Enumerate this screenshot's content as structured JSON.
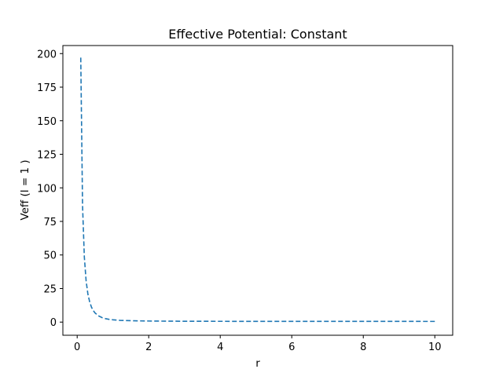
{
  "chart_data": {
    "type": "line",
    "title": "Effective Potential: Constant",
    "xlabel": "r",
    "ylabel": "Veff (l = 1 )",
    "xlim": [
      -0.4,
      10.5
    ],
    "ylim": [
      -9.8,
      206.0
    ],
    "xticks": [
      0,
      2,
      4,
      6,
      8,
      10
    ],
    "yticks": [
      0,
      25,
      50,
      75,
      100,
      125,
      150,
      175,
      200
    ],
    "grid": false,
    "legend": "none",
    "series": [
      {
        "line_style": "dashed",
        "color": "#1f77b4",
        "x": [
          0.1,
          0.15,
          0.2,
          0.25,
          0.3,
          0.35,
          0.4,
          0.45,
          0.5,
          0.6,
          0.7,
          0.8,
          0.9,
          1.0,
          1.2,
          1.4,
          1.6,
          1.8,
          2.0,
          2.5,
          3.0,
          3.5,
          4.0,
          5.0,
          6.0,
          7.0,
          8.0,
          9.0,
          10.0
        ],
        "y": [
          197.0,
          86.9,
          48.5,
          30.6,
          20.8,
          15.0,
          11.1,
          8.6,
          6.8,
          4.6,
          3.3,
          2.5,
          2.0,
          1.7,
          1.3,
          1.1,
          0.96,
          0.87,
          0.8,
          0.7,
          0.63,
          0.6,
          0.58,
          0.55,
          0.54,
          0.53,
          0.52,
          0.52,
          0.51
        ]
      }
    ]
  }
}
